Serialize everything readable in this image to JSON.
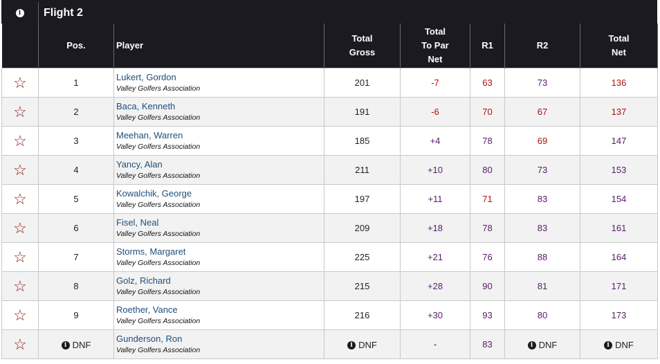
{
  "flight": {
    "title": "Flight 2"
  },
  "headers": {
    "pos": "Pos.",
    "player": "Player",
    "total_gross": [
      "Total",
      "Gross"
    ],
    "to_par": [
      "Total",
      "To Par",
      "Net"
    ],
    "r1": "R1",
    "r2": "R2",
    "total_net": [
      "Total",
      "Net"
    ]
  },
  "colors": {
    "header_bg": "#1b1a20",
    "star": "#8b1a1a",
    "under_par": "#b01010",
    "over_par": "#5a1a6a",
    "name": "#1f4e79"
  },
  "rows": [
    {
      "pos": "1",
      "name": "Lukert, Gordon",
      "club": "Valley Golfers Association",
      "gross": "201",
      "topar": "-7",
      "r1": "63",
      "r2": "73",
      "net": "136",
      "c_topar": "under",
      "c_r1": "under",
      "c_r2": "over",
      "c_net": "under"
    },
    {
      "pos": "2",
      "name": "Baca, Kenneth",
      "club": "Valley Golfers Association",
      "gross": "191",
      "topar": "-6",
      "r1": "70",
      "r2": "67",
      "net": "137",
      "c_topar": "under",
      "c_r1": "under",
      "c_r2": "under",
      "c_net": "under"
    },
    {
      "pos": "3",
      "name": "Meehan, Warren",
      "club": "Valley Golfers Association",
      "gross": "185",
      "topar": "+4",
      "r1": "78",
      "r2": "69",
      "net": "147",
      "c_topar": "over",
      "c_r1": "over",
      "c_r2": "under",
      "c_net": "over"
    },
    {
      "pos": "4",
      "name": "Yancy, Alan",
      "club": "Valley Golfers Association",
      "gross": "211",
      "topar": "+10",
      "r1": "80",
      "r2": "73",
      "net": "153",
      "c_topar": "over",
      "c_r1": "over",
      "c_r2": "over",
      "c_net": "over"
    },
    {
      "pos": "5",
      "name": "Kowalchik, George",
      "club": "Valley Golfers Association",
      "gross": "197",
      "topar": "+11",
      "r1": "71",
      "r2": "83",
      "net": "154",
      "c_topar": "over",
      "c_r1": "under",
      "c_r2": "over",
      "c_net": "over"
    },
    {
      "pos": "6",
      "name": "Fisel, Neal",
      "club": "Valley Golfers Association",
      "gross": "209",
      "topar": "+18",
      "r1": "78",
      "r2": "83",
      "net": "161",
      "c_topar": "over",
      "c_r1": "over",
      "c_r2": "over",
      "c_net": "over"
    },
    {
      "pos": "7",
      "name": "Storms, Margaret",
      "club": "Valley Golfers Association",
      "gross": "225",
      "topar": "+21",
      "r1": "76",
      "r2": "88",
      "net": "164",
      "c_topar": "over",
      "c_r1": "over",
      "c_r2": "over",
      "c_net": "over"
    },
    {
      "pos": "8",
      "name": "Golz, Richard",
      "club": "Valley Golfers Association",
      "gross": "215",
      "topar": "+28",
      "r1": "90",
      "r2": "81",
      "net": "171",
      "c_topar": "over",
      "c_r1": "over",
      "c_r2": "over",
      "c_net": "over"
    },
    {
      "pos": "9",
      "name": "Roether, Vance",
      "club": "Valley Golfers Association",
      "gross": "216",
      "topar": "+30",
      "r1": "93",
      "r2": "80",
      "net": "173",
      "c_topar": "over",
      "c_r1": "over",
      "c_r2": "over",
      "c_net": "over"
    },
    {
      "pos": "DNF",
      "name": "Gunderson, Ron",
      "club": "Valley Golfers Association",
      "gross": "DNF",
      "topar": "-",
      "r1": "83",
      "r2": "DNF",
      "net": "DNF",
      "c_topar": "plain",
      "c_r1": "over",
      "c_r2": "plain",
      "c_net": "plain",
      "dnf": true
    }
  ]
}
